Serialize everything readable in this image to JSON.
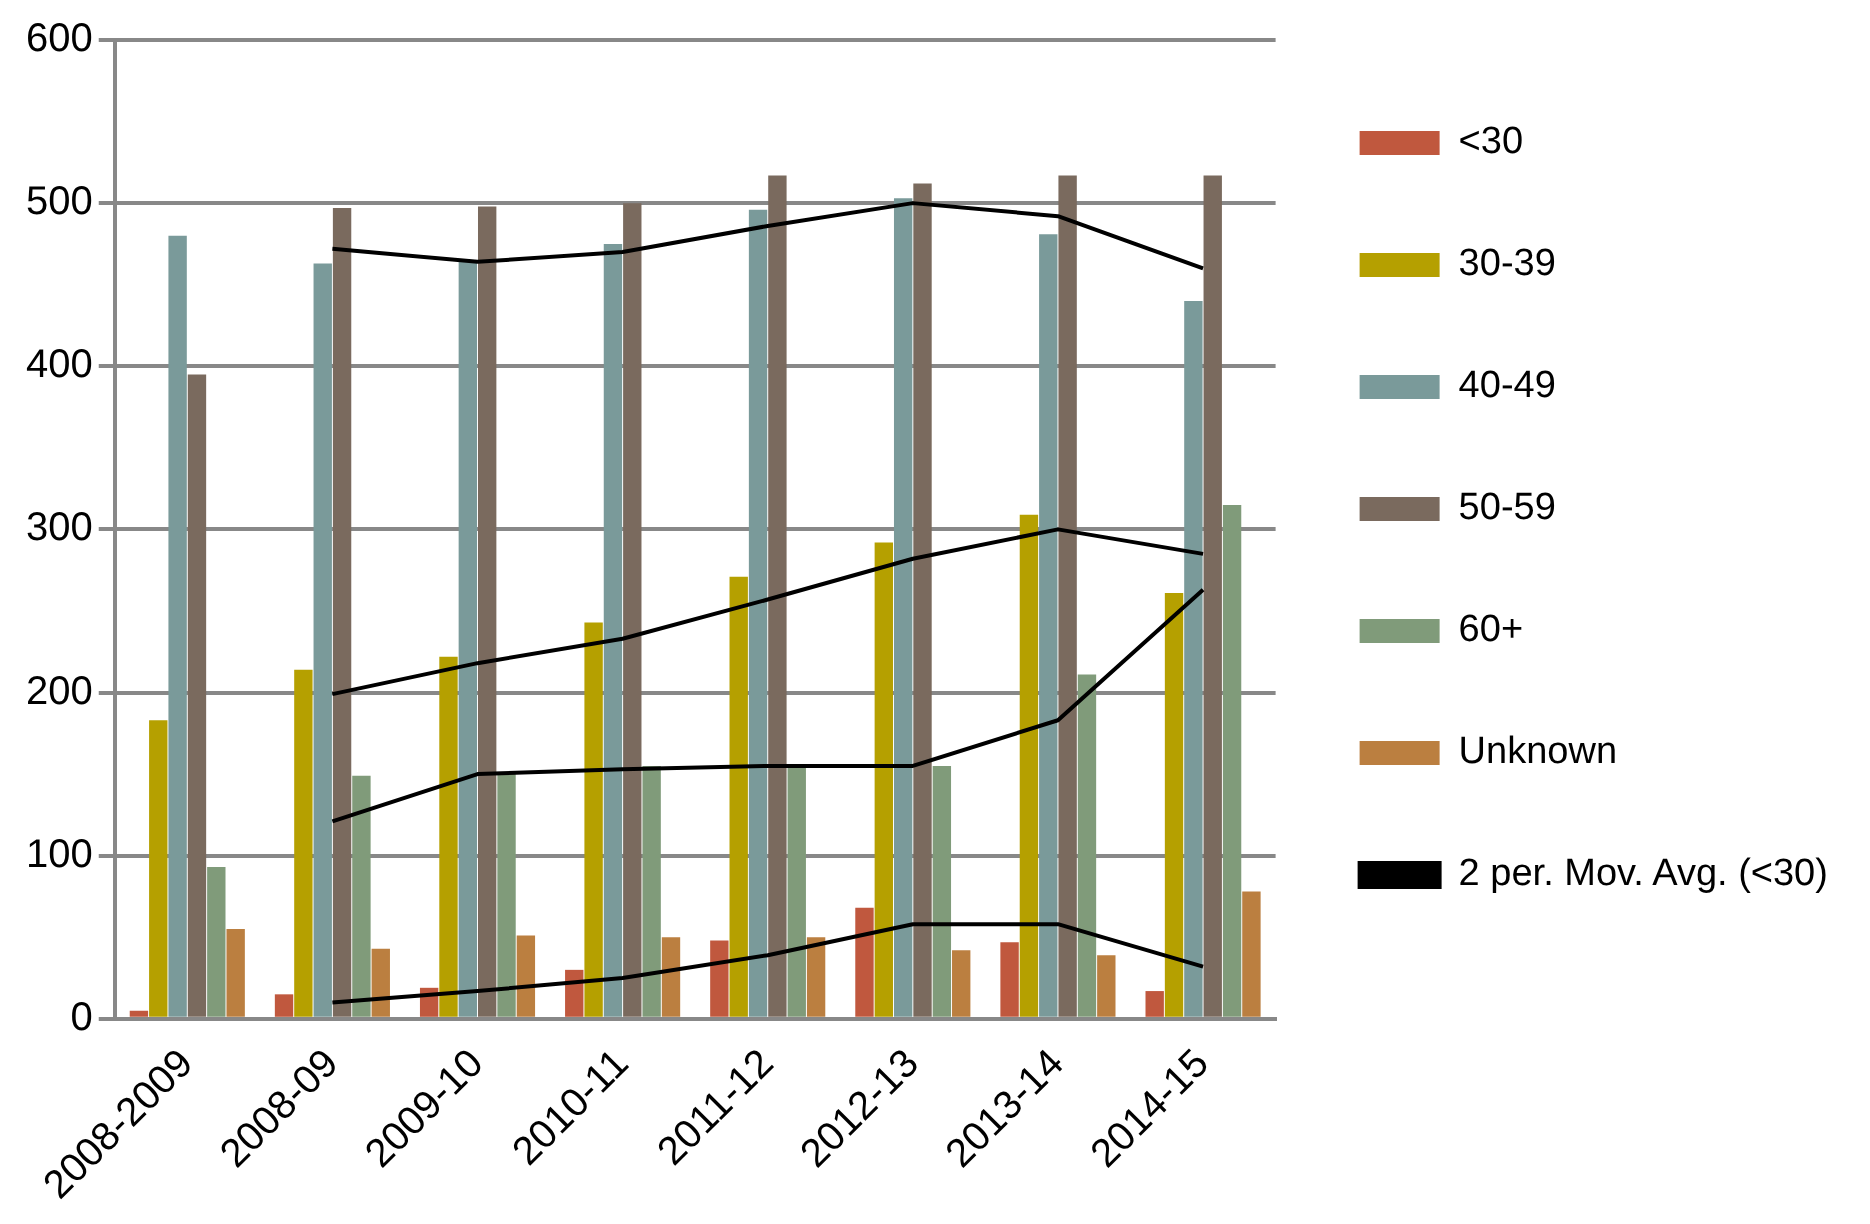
{
  "chart_data": {
    "type": "bar",
    "categories": [
      "2008-2009",
      "2008-09",
      "2009-10",
      "2010-11",
      "2011-12",
      "2012-13",
      "2013-14",
      "2014-15"
    ],
    "series": [
      {
        "name": "<30",
        "color": "#c0583e",
        "values": [
          5,
          15,
          19,
          30,
          48,
          68,
          47,
          17
        ]
      },
      {
        "name": "30-39",
        "color": "#b5a000",
        "values": [
          183,
          214,
          222,
          243,
          271,
          292,
          309,
          261
        ]
      },
      {
        "name": "40-49",
        "color": "#7a9a9a",
        "values": [
          480,
          463,
          464,
          475,
          496,
          503,
          481,
          440
        ]
      },
      {
        "name": "50-59",
        "color": "#7a6a5e",
        "values": [
          395,
          497,
          498,
          500,
          517,
          512,
          517,
          517
        ]
      },
      {
        "name": "60+",
        "color": "#809b7a",
        "values": [
          93,
          149,
          150,
          155,
          155,
          155,
          211,
          315
        ]
      },
      {
        "name": "Unknown",
        "color": "#bb7f40",
        "values": [
          55,
          43,
          51,
          50,
          50,
          42,
          39,
          78
        ]
      },
      {
        "name": "2 per. Mov. Avg. (<30)",
        "type": "line",
        "color": "#000000",
        "values": [
          null,
          10,
          17,
          25,
          39,
          58,
          58,
          32
        ]
      },
      {
        "type": "line",
        "color": "#000000",
        "values": [
          null,
          199,
          218,
          233,
          257,
          282,
          300,
          285
        ]
      },
      {
        "type": "line",
        "color": "#000000",
        "values": [
          null,
          472,
          464,
          470,
          486,
          500,
          492,
          460
        ]
      },
      {
        "type": "line",
        "color": "#000000",
        "values": [
          null,
          121,
          150,
          153,
          155,
          155,
          183,
          263
        ]
      }
    ],
    "ylim": [
      0,
      600
    ],
    "yticks": [
      0,
      100,
      200,
      300,
      400,
      500,
      600
    ],
    "grid": "y",
    "legend": "right",
    "marker": "none"
  }
}
